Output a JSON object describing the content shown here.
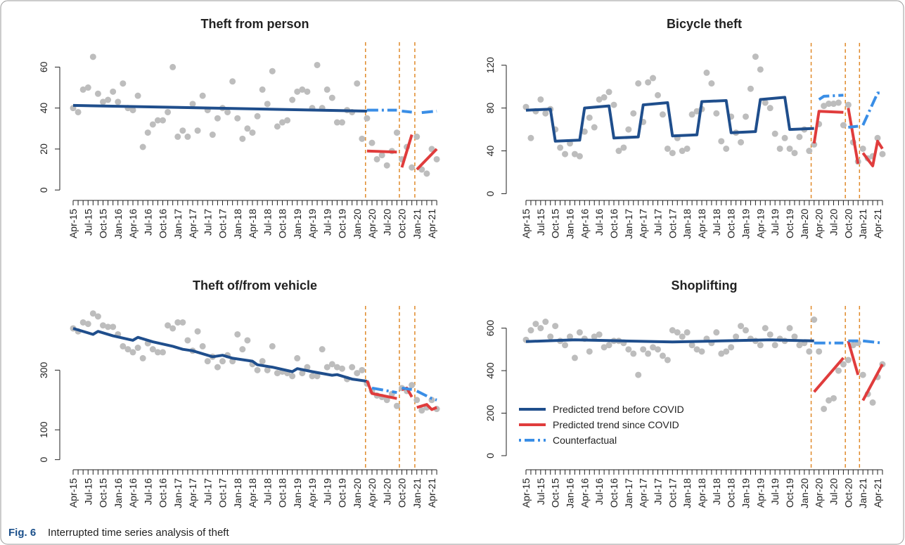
{
  "chart_data": [
    {
      "type": "scatter",
      "title": "Theft from person",
      "categories": [
        "Apr-15",
        null,
        null,
        "Jul-15",
        null,
        null,
        "Oct-15",
        null,
        null,
        "Jan-16",
        null,
        null,
        "Apr-16",
        null,
        null,
        "Jul-16",
        null,
        null,
        "Oct-16",
        null,
        null,
        "Jan-17",
        null,
        null,
        "Apr-17",
        null,
        null,
        "Jul-17",
        null,
        null,
        "Oct-17",
        null,
        null,
        "Jan-18",
        null,
        null,
        "Apr-18",
        null,
        null,
        "Jul-18",
        null,
        null,
        "Oct-18",
        null,
        null,
        "Jan-19",
        null,
        null,
        "Apr-19",
        null,
        null,
        "Jul-19",
        null,
        null,
        "Oct-19",
        null,
        null,
        "Jan-20",
        null,
        null,
        "Apr-20",
        null,
        null,
        "Jul-20",
        null,
        null,
        "Oct-20",
        null,
        null,
        "Jan-21",
        null,
        null,
        "Apr-21",
        null
      ],
      "points": {
        "color": "#bdbdbd",
        "values": [
          40,
          38,
          49,
          50,
          65,
          47,
          43,
          44,
          48,
          43,
          52,
          40,
          39,
          46,
          21,
          28,
          32,
          34,
          34,
          38,
          60,
          26,
          29,
          26,
          42,
          29,
          46,
          39,
          27,
          35,
          40,
          38,
          53,
          35,
          25,
          30,
          28,
          36,
          49,
          42,
          58,
          31,
          33,
          34,
          44,
          48,
          49,
          48,
          40,
          61,
          40,
          49,
          45,
          33,
          33,
          39,
          38,
          52,
          25,
          35,
          23,
          15,
          17,
          12,
          19,
          28,
          15,
          21,
          11,
          26,
          10,
          8,
          20,
          15
        ]
      },
      "series": [
        {
          "color": "#1f4e8c",
          "style": "solid",
          "x": [
            0,
            6,
            59
          ],
          "values": [
            41.3,
            41,
            38.5
          ]
        },
        {
          "color": "#e03c3c",
          "style": "solid",
          "x": [
            59,
            65,
            null,
            66,
            68,
            null,
            69,
            73
          ],
          "values": [
            19,
            18.5,
            null,
            11,
            27,
            null,
            10,
            20
          ]
        },
        {
          "color": "#3a8ee6",
          "style": "dashed",
          "x": [
            59,
            65,
            null,
            66,
            68,
            null,
            70,
            73
          ],
          "values": [
            39,
            39,
            null,
            38.5,
            38,
            null,
            37.8,
            38.5
          ]
        }
      ],
      "vlines": {
        "color": "#e08a2a",
        "x": [
          58.7,
          65.5,
          68.6
        ]
      },
      "ylim": [
        -2,
        67
      ],
      "yticks": [
        0,
        20,
        40,
        60
      ]
    },
    {
      "type": "scatter",
      "title": "Bicycle theft",
      "categories": [
        "Apr-15",
        null,
        null,
        "Jul-15",
        null,
        null,
        "Oct-15",
        null,
        null,
        "Jan-16",
        null,
        null,
        "Apr-16",
        null,
        null,
        "Jul-16",
        null,
        null,
        "Oct-16",
        null,
        null,
        "Jan-17",
        null,
        null,
        "Apr-17",
        null,
        null,
        "Jul-17",
        null,
        null,
        "Oct-17",
        null,
        null,
        "Jan-18",
        null,
        null,
        "Apr-18",
        null,
        null,
        "Jul-18",
        null,
        null,
        "Oct-18",
        null,
        null,
        "Jan-19",
        null,
        null,
        "Apr-19",
        null,
        null,
        "Jul-19",
        null,
        null,
        "Oct-19",
        null,
        null,
        "Jan-20",
        null,
        null,
        "Apr-20",
        null,
        null,
        "Jul-20",
        null,
        null,
        "Oct-20",
        null,
        null,
        "Jan-21",
        null,
        null,
        "Apr-21",
        null
      ],
      "points": {
        "color": "#bdbdbd",
        "values": [
          81,
          52,
          77,
          88,
          75,
          79,
          60,
          43,
          37,
          47,
          37,
          35,
          58,
          71,
          62,
          88,
          90,
          95,
          83,
          40,
          43,
          60,
          75,
          103,
          67,
          104,
          108,
          92,
          74,
          42,
          38,
          52,
          40,
          42,
          74,
          77,
          79,
          113,
          103,
          75,
          49,
          42,
          72,
          57,
          48,
          72,
          98,
          128,
          116,
          85,
          80,
          56,
          42,
          52,
          42,
          38,
          53,
          60,
          40,
          46,
          65,
          82,
          84,
          84,
          85,
          64,
          83,
          48,
          30,
          42,
          33,
          35,
          52,
          37
        ]
      },
      "series": [
        {
          "color": "#1f4e8c",
          "style": "solid",
          "x": [
            0,
            5,
            6,
            11,
            12,
            17,
            18,
            23,
            24,
            29,
            30,
            35,
            36,
            41,
            42,
            47,
            48,
            53,
            54,
            59
          ],
          "values": [
            78,
            79,
            49,
            50,
            80,
            82,
            52,
            53,
            83,
            85,
            54,
            55,
            86,
            87,
            57,
            58,
            88,
            90,
            60,
            61
          ]
        },
        {
          "color": "#e03c3c",
          "style": "solid",
          "x": [
            59,
            60,
            65,
            null,
            66,
            68,
            null,
            69,
            71,
            72,
            73
          ],
          "values": [
            47,
            77,
            76,
            null,
            80,
            28,
            null,
            38,
            26,
            49,
            42
          ]
        },
        {
          "color": "#3a8ee6",
          "style": "dashed",
          "x": [
            60,
            61,
            65,
            null,
            66,
            68,
            null,
            69,
            72,
            73
          ],
          "values": [
            88,
            91,
            92,
            null,
            62,
            63,
            null,
            64,
            94,
            94
          ]
        }
      ],
      "vlines": {
        "color": "#e08a2a",
        "x": [
          58.4,
          65.4,
          68.3
        ]
      },
      "ylim": [
        -3,
        131
      ],
      "yticks": [
        0,
        40,
        80,
        120
      ]
    },
    {
      "type": "scatter",
      "title": "Theft of/from vehicle",
      "categories": [
        "Apr-15",
        null,
        null,
        "Jul-15",
        null,
        null,
        "Oct-15",
        null,
        null,
        "Jan-16",
        null,
        null,
        "Apr-16",
        null,
        null,
        "Jul-16",
        null,
        null,
        "Oct-16",
        null,
        null,
        "Jan-17",
        null,
        null,
        "Apr-17",
        null,
        null,
        "Jul-17",
        null,
        null,
        "Oct-17",
        null,
        null,
        "Jan-18",
        null,
        null,
        "Apr-18",
        null,
        null,
        "Jul-18",
        null,
        null,
        "Oct-18",
        null,
        null,
        "Jan-19",
        null,
        null,
        "Apr-19",
        null,
        null,
        "Jul-19",
        null,
        null,
        "Oct-19",
        null,
        null,
        "Jan-20",
        null,
        null,
        "Apr-20",
        null,
        null,
        "Jul-20",
        null,
        null,
        "Oct-20",
        null,
        null,
        "Jan-21",
        null,
        null,
        "Apr-21",
        null
      ],
      "points": {
        "color": "#bdbdbd",
        "values": [
          440,
          430,
          460,
          455,
          490,
          480,
          450,
          445,
          445,
          420,
          380,
          370,
          360,
          375,
          340,
          390,
          370,
          360,
          360,
          450,
          440,
          460,
          460,
          400,
          365,
          430,
          380,
          330,
          345,
          310,
          330,
          350,
          330,
          420,
          370,
          400,
          320,
          300,
          330,
          300,
          380,
          290,
          295,
          290,
          280,
          340,
          290,
          310,
          280,
          280,
          370,
          310,
          320,
          310,
          305,
          270,
          310,
          290,
          300,
          255,
          230,
          215,
          210,
          200,
          220,
          180,
          240,
          230,
          250,
          200,
          165,
          175,
          200,
          170
        ]
      },
      "series": [
        {
          "color": "#1f4e8c",
          "style": "solid",
          "x": [
            0,
            4,
            5,
            8,
            12,
            13,
            16,
            20,
            22,
            24,
            25,
            28,
            30,
            32,
            36,
            37,
            40,
            44,
            45,
            48,
            52,
            53,
            56,
            59
          ],
          "values": [
            440,
            420,
            430,
            415,
            400,
            410,
            395,
            380,
            370,
            365,
            360,
            345,
            350,
            340,
            330,
            318,
            310,
            295,
            305,
            295,
            283,
            285,
            270,
            263
          ]
        },
        {
          "color": "#e03c3c",
          "style": "solid",
          "x": [
            59,
            60,
            65,
            null,
            66,
            67,
            68,
            null,
            69,
            71,
            72,
            73
          ],
          "values": [
            265,
            222,
            205,
            null,
            235,
            240,
            210,
            null,
            175,
            185,
            168,
            175
          ]
        },
        {
          "color": "#3a8ee6",
          "style": "dashed",
          "x": [
            60,
            65,
            null,
            66,
            68,
            null,
            69,
            72,
            73
          ],
          "values": [
            240,
            225,
            null,
            240,
            235,
            null,
            230,
            205,
            200
          ]
        }
      ],
      "vlines": {
        "color": "#e08a2a",
        "x": [
          58.7,
          65.5,
          68.6
        ]
      },
      "ylim": [
        -15,
        480
      ],
      "yticks": [
        0,
        100,
        300
      ]
    },
    {
      "type": "scatter",
      "title": "Shoplifting",
      "categories": [
        "Apr-15",
        null,
        null,
        "Jul-15",
        null,
        null,
        "Oct-15",
        null,
        null,
        "Jan-16",
        null,
        null,
        "Apr-16",
        null,
        null,
        "Jul-16",
        null,
        null,
        "Oct-16",
        null,
        null,
        "Jan-17",
        null,
        null,
        "Apr-17",
        null,
        null,
        "Jul-17",
        null,
        null,
        "Oct-17",
        null,
        null,
        "Jan-18",
        null,
        null,
        "Apr-18",
        null,
        null,
        "Jul-18",
        null,
        null,
        "Oct-18",
        null,
        null,
        "Jan-19",
        null,
        null,
        "Apr-19",
        null,
        null,
        "Jul-19",
        null,
        null,
        "Oct-19",
        null,
        null,
        "Jan-20",
        null,
        null,
        "Apr-20",
        null,
        null,
        "Jul-20",
        null,
        null,
        "Oct-20",
        null,
        null,
        "Jan-21",
        null,
        null,
        "Apr-21",
        null
      ],
      "points": {
        "color": "#bdbdbd",
        "values": [
          545,
          590,
          620,
          600,
          630,
          560,
          610,
          540,
          520,
          560,
          460,
          580,
          550,
          490,
          560,
          570,
          510,
          520,
          540,
          540,
          530,
          500,
          480,
          380,
          500,
          480,
          510,
          500,
          470,
          450,
          590,
          580,
          560,
          580,
          520,
          500,
          490,
          550,
          530,
          580,
          480,
          490,
          510,
          560,
          610,
          590,
          550,
          540,
          520,
          600,
          570,
          520,
          550,
          540,
          600,
          560,
          520,
          530,
          490,
          640,
          490,
          220,
          260,
          270,
          400,
          430,
          450,
          520,
          530,
          380,
          290,
          250,
          370,
          430
        ]
      },
      "series": [
        {
          "name": "Predicted trend before COVID",
          "color": "#1f4e8c",
          "style": "solid",
          "x": [
            0,
            10,
            20,
            30,
            40,
            50,
            59
          ],
          "values": [
            537,
            545,
            540,
            535,
            540,
            545,
            540
          ]
        },
        {
          "name": "Predicted trend since COVID",
          "color": "#e03c3c",
          "style": "solid",
          "x": [
            59,
            65,
            null,
            66,
            68,
            null,
            69,
            73
          ],
          "values": [
            300,
            460,
            null,
            540,
            380,
            null,
            260,
            430
          ]
        },
        {
          "name": "Counterfactual",
          "color": "#3a8ee6",
          "style": "dashed",
          "x": [
            59,
            65,
            null,
            66,
            68,
            null,
            69,
            73
          ],
          "values": [
            530,
            530,
            null,
            540,
            540,
            null,
            540,
            530
          ]
        }
      ],
      "vlines": {
        "color": "#e08a2a",
        "x": [
          58.4,
          65.4,
          68.3
        ]
      },
      "legend": "bottomleft",
      "ylim": [
        -20,
        655
      ],
      "yticks": [
        0,
        200,
        400,
        600
      ]
    }
  ],
  "caption": {
    "label": "Fig. 6",
    "text": "Interrupted time series analysis of theft"
  }
}
